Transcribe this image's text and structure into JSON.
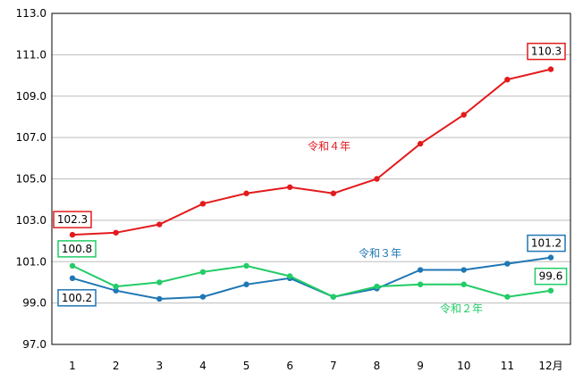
{
  "chart_data": {
    "type": "line",
    "categories": [
      "1",
      "2",
      "3",
      "4",
      "5",
      "6",
      "7",
      "8",
      "9",
      "10",
      "11",
      "12月"
    ],
    "ylim": [
      97.0,
      113.0
    ],
    "yticks": [
      97.0,
      99.0,
      101.0,
      103.0,
      105.0,
      107.0,
      109.0,
      111.0,
      113.0
    ],
    "ytick_labels": [
      "97.0",
      "99.0",
      "101.0",
      "103.0",
      "105.0",
      "107.0",
      "109.0",
      "111.0",
      "113.0"
    ],
    "grid": "horizontal",
    "series": [
      {
        "name": "令和４年",
        "color": "#e31a1c",
        "values": [
          102.3,
          102.4,
          102.8,
          103.8,
          104.3,
          104.6,
          104.3,
          105.0,
          106.7,
          108.1,
          109.8,
          110.3
        ],
        "callouts": [
          {
            "index": 0,
            "text": "102.3"
          },
          {
            "index": 11,
            "text": "110.3"
          }
        ]
      },
      {
        "name": "令和３年",
        "color": "#1f77b4",
        "values": [
          100.2,
          99.6,
          99.2,
          99.3,
          99.9,
          100.2,
          99.3,
          99.7,
          100.6,
          100.6,
          100.9,
          101.2
        ],
        "callouts": [
          {
            "index": 0,
            "text": "100.2"
          },
          {
            "index": 11,
            "text": "101.2"
          }
        ]
      },
      {
        "name": "令和２年",
        "color": "#22cc66",
        "values": [
          100.8,
          99.8,
          100.0,
          100.5,
          100.8,
          100.3,
          99.3,
          99.8,
          99.9,
          99.9,
          99.3,
          99.6
        ],
        "callouts": [
          {
            "index": 0,
            "text": "100.8"
          },
          {
            "index": 11,
            "text": "99.6"
          }
        ]
      }
    ]
  }
}
